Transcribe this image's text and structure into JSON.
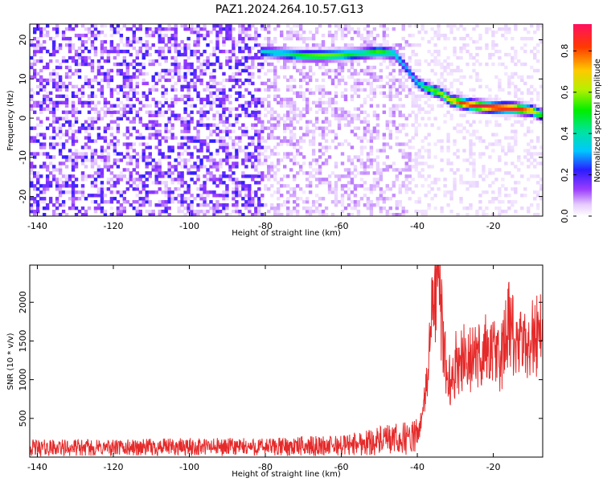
{
  "title": "PAZ1.2024.264.10.57.G13",
  "chart_data": [
    {
      "type": "heatmap",
      "xlabel": "Height of straight line (km)",
      "ylabel": "Frequency (Hz)",
      "xlim": [
        -142,
        -7
      ],
      "ylim": [
        -25,
        24
      ],
      "xticks": [
        -140,
        -120,
        -100,
        -80,
        -60,
        -40,
        -20
      ],
      "yticks": [
        -20,
        -10,
        0,
        10,
        20
      ],
      "colorbar": {
        "label": "Normalized spectral amplitude",
        "range": [
          0,
          0.93
        ],
        "ticks": [
          0.0,
          0.2,
          0.4,
          0.6,
          0.8
        ],
        "colormap": "rainbow-purple-to-red"
      },
      "noise_region_x": [
        -142,
        -80
      ],
      "ridge": {
        "x": [
          -81,
          -75,
          -70,
          -65,
          -60,
          -55,
          -50,
          -46,
          -43,
          -40,
          -37,
          -34,
          -31,
          -28,
          -25,
          -20,
          -15,
          -10,
          -7
        ],
        "y": [
          17,
          16.5,
          16,
          16,
          16.2,
          16.5,
          17,
          16.5,
          13,
          9,
          7.5,
          6.5,
          4.5,
          3.8,
          3.3,
          2.8,
          2.6,
          2,
          0.8
        ],
        "amp": [
          0.35,
          0.4,
          0.55,
          0.6,
          0.55,
          0.45,
          0.55,
          0.4,
          0.3,
          0.35,
          0.55,
          0.6,
          0.7,
          0.85,
          0.9,
          0.92,
          0.9,
          0.75,
          0.5
        ]
      },
      "grid": false
    },
    {
      "type": "line",
      "xlabel": "Height of straight line (km)",
      "ylabel": "SNR (10 * v/v)",
      "xlim": [
        -142,
        -7
      ],
      "ylim": [
        0,
        2480
      ],
      "xticks": [
        -140,
        -120,
        -100,
        -80,
        -60,
        -40,
        -20
      ],
      "yticks": [
        500,
        1000,
        1500,
        2000
      ],
      "color": "#e52a2a",
      "series_envelope": {
        "x": [
          -142,
          -120,
          -100,
          -80,
          -70,
          -60,
          -52,
          -45,
          -40,
          -38,
          -36,
          -35,
          -34,
          -33,
          -32,
          -31,
          -30,
          -28,
          -26,
          -24,
          -22,
          -20,
          -18,
          -16,
          -14,
          -12,
          -10,
          -8,
          -7
        ],
        "y": [
          120,
          120,
          130,
          130,
          140,
          150,
          200,
          230,
          260,
          700,
          1900,
          2350,
          2000,
          1400,
          1100,
          900,
          1200,
          1300,
          1250,
          1300,
          1400,
          1350,
          1250,
          1700,
          1450,
          1400,
          1550,
          1600,
          1750
        ]
      },
      "grid": false
    }
  ]
}
